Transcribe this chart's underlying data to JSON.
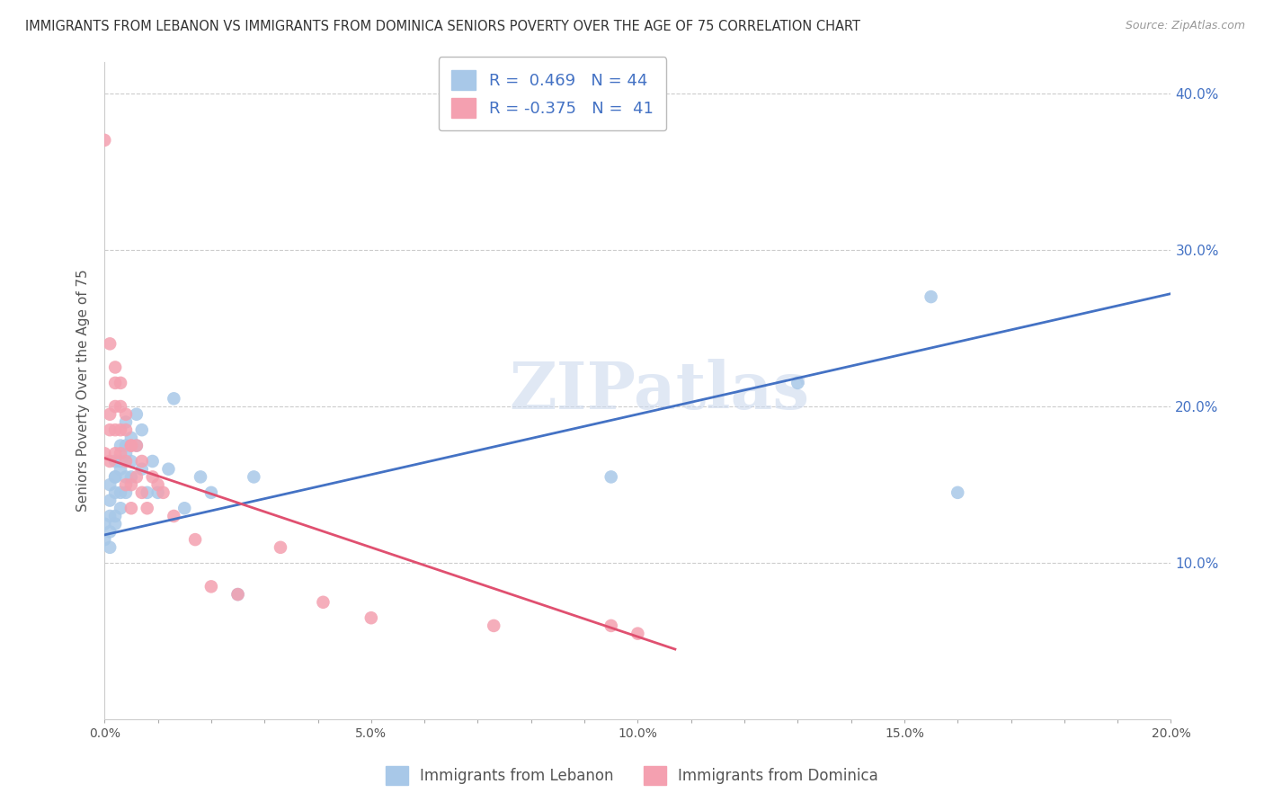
{
  "title": "IMMIGRANTS FROM LEBANON VS IMMIGRANTS FROM DOMINICA SENIORS POVERTY OVER THE AGE OF 75 CORRELATION CHART",
  "source": "Source: ZipAtlas.com",
  "xlabel_blue": "Immigrants from Lebanon",
  "xlabel_pink": "Immigrants from Dominica",
  "ylabel": "Seniors Poverty Over the Age of 75",
  "R_blue": 0.469,
  "N_blue": 44,
  "R_pink": -0.375,
  "N_pink": 41,
  "color_blue": "#a8c8e8",
  "color_pink": "#f4a0b0",
  "line_blue": "#4472c4",
  "line_pink": "#e05070",
  "text_color": "#4472c4",
  "xlim": [
    0.0,
    0.2
  ],
  "ylim": [
    0.0,
    0.42
  ],
  "blue_scatter_x": [
    0.0,
    0.0,
    0.001,
    0.001,
    0.001,
    0.001,
    0.001,
    0.002,
    0.002,
    0.002,
    0.002,
    0.002,
    0.002,
    0.003,
    0.003,
    0.003,
    0.003,
    0.003,
    0.004,
    0.004,
    0.004,
    0.004,
    0.004,
    0.005,
    0.005,
    0.005,
    0.006,
    0.006,
    0.007,
    0.007,
    0.008,
    0.009,
    0.01,
    0.012,
    0.013,
    0.015,
    0.018,
    0.02,
    0.025,
    0.028,
    0.095,
    0.13,
    0.155,
    0.16
  ],
  "blue_scatter_y": [
    0.125,
    0.115,
    0.13,
    0.12,
    0.11,
    0.15,
    0.14,
    0.155,
    0.13,
    0.165,
    0.145,
    0.155,
    0.125,
    0.165,
    0.145,
    0.175,
    0.135,
    0.16,
    0.175,
    0.155,
    0.17,
    0.19,
    0.145,
    0.18,
    0.165,
    0.155,
    0.195,
    0.175,
    0.16,
    0.185,
    0.145,
    0.165,
    0.145,
    0.16,
    0.205,
    0.135,
    0.155,
    0.145,
    0.08,
    0.155,
    0.155,
    0.215,
    0.27,
    0.145
  ],
  "pink_scatter_x": [
    0.0,
    0.0,
    0.001,
    0.001,
    0.001,
    0.001,
    0.002,
    0.002,
    0.002,
    0.002,
    0.002,
    0.003,
    0.003,
    0.003,
    0.003,
    0.004,
    0.004,
    0.004,
    0.004,
    0.005,
    0.005,
    0.005,
    0.005,
    0.006,
    0.006,
    0.007,
    0.007,
    0.008,
    0.009,
    0.01,
    0.011,
    0.013,
    0.017,
    0.02,
    0.025,
    0.033,
    0.041,
    0.05,
    0.073,
    0.095,
    0.1
  ],
  "pink_scatter_y": [
    0.37,
    0.17,
    0.195,
    0.24,
    0.165,
    0.185,
    0.215,
    0.225,
    0.185,
    0.2,
    0.17,
    0.215,
    0.2,
    0.185,
    0.17,
    0.185,
    0.165,
    0.195,
    0.15,
    0.175,
    0.15,
    0.175,
    0.135,
    0.175,
    0.155,
    0.165,
    0.145,
    0.135,
    0.155,
    0.15,
    0.145,
    0.13,
    0.115,
    0.085,
    0.08,
    0.11,
    0.075,
    0.065,
    0.06,
    0.06,
    0.055
  ],
  "blue_trend": [
    0.0,
    0.2
  ],
  "blue_trend_y": [
    0.118,
    0.272
  ],
  "pink_trend": [
    0.0,
    0.107
  ],
  "pink_trend_y": [
    0.167,
    0.045
  ],
  "ytick_labels": [
    "",
    "10.0%",
    "",
    "20.0%",
    "",
    "30.0%",
    "",
    "40.0%"
  ],
  "ytick_values": [
    0.0,
    0.1,
    0.15,
    0.2,
    0.25,
    0.3,
    0.35,
    0.4
  ],
  "xtick_labels": [
    "0.0%",
    "",
    "",
    "",
    "",
    "5.0%",
    "",
    "",
    "",
    "",
    "10.0%",
    "",
    "",
    "",
    "",
    "15.0%",
    "",
    "",
    "",
    "",
    "20.0%"
  ],
  "xtick_values": [
    0.0,
    0.01,
    0.02,
    0.03,
    0.04,
    0.05,
    0.06,
    0.07,
    0.08,
    0.09,
    0.1,
    0.11,
    0.12,
    0.13,
    0.14,
    0.15,
    0.16,
    0.17,
    0.18,
    0.19,
    0.2
  ],
  "watermark": "ZIPatlas",
  "background_color": "#ffffff"
}
